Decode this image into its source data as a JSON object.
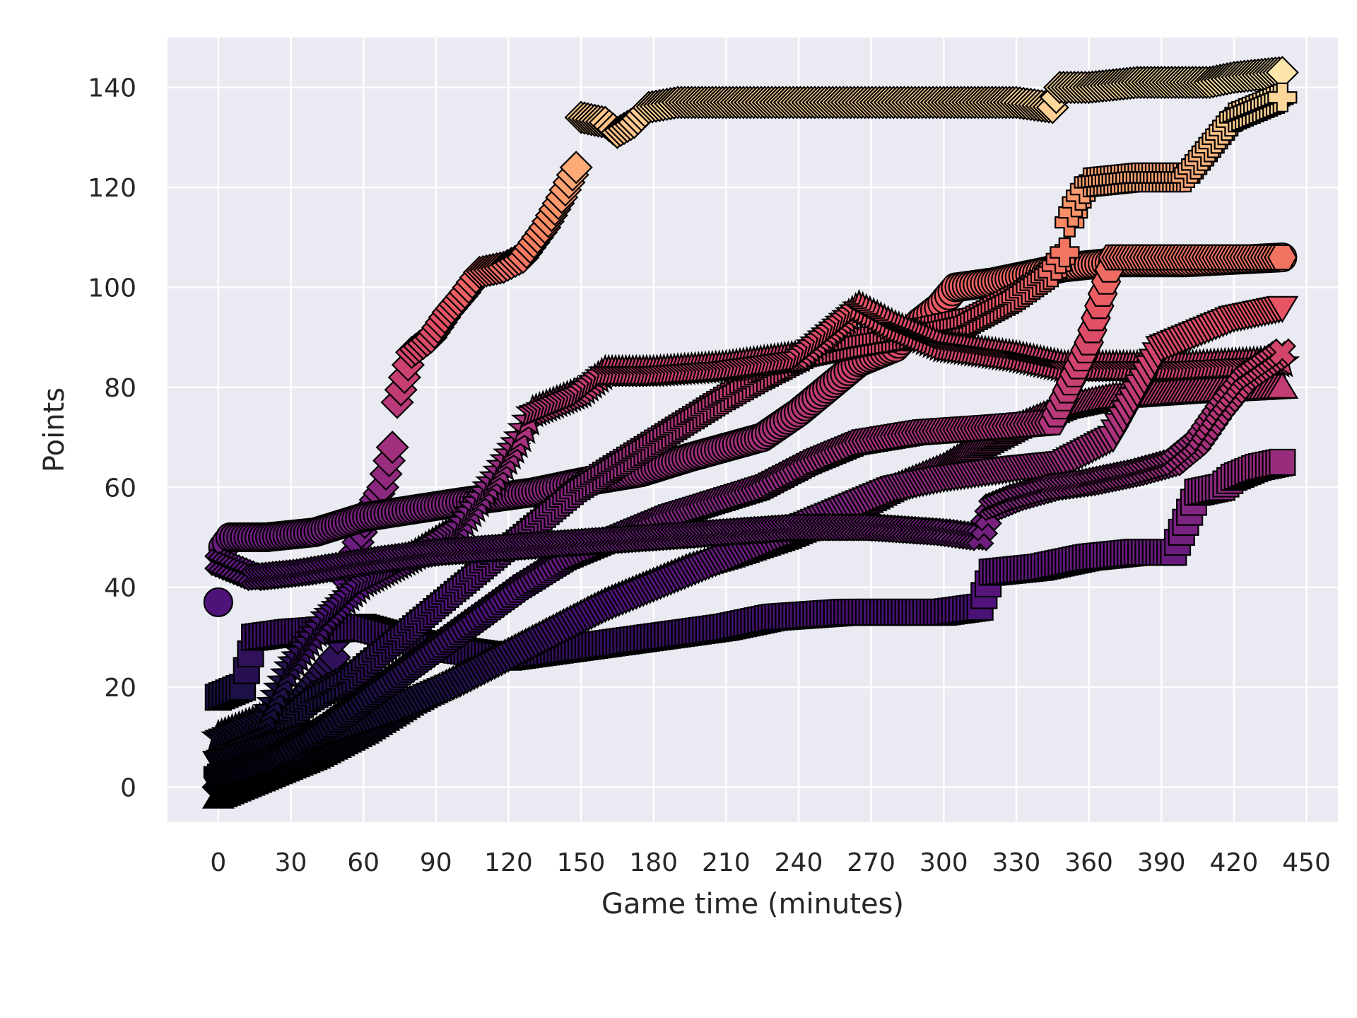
{
  "chart_data": {
    "type": "scatter",
    "title": "",
    "xlabel": "Game time (minutes)",
    "ylabel": "Points",
    "xlim": [
      -21,
      463
    ],
    "ylim": [
      -7,
      150
    ],
    "xticks": [
      0,
      30,
      60,
      90,
      120,
      150,
      180,
      210,
      240,
      270,
      300,
      330,
      360,
      390,
      420,
      450
    ],
    "yticks": [
      0,
      20,
      40,
      60,
      80,
      100,
      120,
      140
    ],
    "grid": true,
    "legend": "none",
    "style": {
      "background": "#eaeaf2",
      "grid_color": "#ffffff",
      "marker_edge": "#000000",
      "colormap": "magma",
      "color_range": [
        0,
        150
      ]
    },
    "series": [
      {
        "marker": "diamond",
        "points": [
          [
            0,
            0
          ],
          [
            10,
            4
          ],
          [
            22,
            10
          ],
          [
            35,
            18
          ],
          [
            48,
            26
          ],
          [
            55,
            45
          ],
          [
            62,
            55
          ],
          [
            68,
            60
          ],
          [
            72,
            68
          ],
          [
            74,
            77
          ],
          [
            80,
            87
          ],
          [
            88,
            90
          ],
          [
            95,
            95
          ],
          [
            102,
            99
          ],
          [
            108,
            103
          ],
          [
            118,
            104
          ],
          [
            126,
            106
          ],
          [
            135,
            112
          ],
          [
            142,
            118
          ],
          [
            148,
            124
          ],
          [
            150,
            134
          ],
          [
            160,
            133
          ],
          [
            165,
            131
          ],
          [
            172,
            133
          ],
          [
            178,
            136
          ],
          [
            190,
            137
          ],
          [
            220,
            137
          ],
          [
            260,
            137
          ],
          [
            300,
            137
          ],
          [
            330,
            137
          ],
          [
            345,
            136
          ],
          [
            348,
            140
          ],
          [
            360,
            140
          ],
          [
            380,
            141
          ],
          [
            400,
            141
          ],
          [
            410,
            141
          ],
          [
            420,
            142
          ],
          [
            440,
            143
          ]
        ]
      },
      {
        "marker": "circle",
        "points": [
          [
            0,
            37
          ],
          [
            2,
            48
          ],
          [
            5,
            50
          ],
          [
            20,
            50
          ],
          [
            40,
            51
          ],
          [
            60,
            54
          ],
          [
            100,
            57
          ],
          [
            130,
            59
          ],
          [
            150,
            61
          ],
          [
            175,
            63
          ],
          [
            195,
            66
          ],
          [
            210,
            68
          ],
          [
            225,
            70
          ],
          [
            240,
            75
          ],
          [
            265,
            85
          ],
          [
            280,
            88
          ],
          [
            290,
            93
          ],
          [
            298,
            96
          ],
          [
            305,
            100
          ],
          [
            320,
            101
          ],
          [
            340,
            103
          ],
          [
            350,
            104
          ],
          [
            370,
            105
          ],
          [
            400,
            105
          ],
          [
            440,
            106
          ]
        ]
      },
      {
        "marker": "square",
        "points": [
          [
            0,
            18
          ],
          [
            10,
            20
          ],
          [
            15,
            30
          ],
          [
            30,
            31
          ],
          [
            60,
            32
          ],
          [
            90,
            28
          ],
          [
            120,
            26
          ],
          [
            150,
            28
          ],
          [
            180,
            30
          ],
          [
            210,
            32
          ],
          [
            230,
            34
          ],
          [
            260,
            35
          ],
          [
            300,
            35
          ],
          [
            315,
            36
          ],
          [
            320,
            43
          ],
          [
            340,
            44
          ],
          [
            360,
            46
          ],
          [
            380,
            47
          ],
          [
            395,
            47
          ],
          [
            400,
            53
          ],
          [
            405,
            59
          ],
          [
            415,
            60
          ],
          [
            420,
            62
          ],
          [
            430,
            64
          ],
          [
            440,
            65
          ]
        ]
      },
      {
        "marker": "plus",
        "points": [
          [
            0,
            3
          ],
          [
            15,
            8
          ],
          [
            25,
            12
          ],
          [
            40,
            18
          ],
          [
            55,
            22
          ],
          [
            70,
            28
          ],
          [
            90,
            36
          ],
          [
            110,
            44
          ],
          [
            130,
            52
          ],
          [
            150,
            60
          ],
          [
            170,
            66
          ],
          [
            190,
            72
          ],
          [
            210,
            78
          ],
          [
            225,
            82
          ],
          [
            245,
            87
          ],
          [
            265,
            89
          ],
          [
            290,
            91
          ],
          [
            310,
            93
          ],
          [
            330,
            98
          ],
          [
            345,
            103
          ],
          [
            350,
            107
          ],
          [
            352,
            113
          ],
          [
            355,
            117
          ],
          [
            360,
            121
          ],
          [
            380,
            122
          ],
          [
            400,
            122
          ],
          [
            420,
            134
          ],
          [
            440,
            138
          ]
        ]
      },
      {
        "marker": "star",
        "points": [
          [
            0,
            10
          ],
          [
            20,
            14
          ],
          [
            30,
            24
          ],
          [
            45,
            34
          ],
          [
            60,
            41
          ],
          [
            80,
            46
          ],
          [
            100,
            52
          ],
          [
            115,
            62
          ],
          [
            125,
            70
          ],
          [
            130,
            75
          ],
          [
            140,
            77
          ],
          [
            150,
            79
          ],
          [
            160,
            83
          ],
          [
            180,
            83
          ],
          [
            210,
            84
          ],
          [
            240,
            86
          ],
          [
            255,
            92
          ],
          [
            265,
            96
          ],
          [
            280,
            92
          ],
          [
            300,
            88
          ],
          [
            330,
            86
          ],
          [
            350,
            84
          ],
          [
            370,
            84
          ],
          [
            400,
            84
          ],
          [
            440,
            85
          ]
        ]
      },
      {
        "marker": "triangle-up",
        "points": [
          [
            0,
            -2
          ],
          [
            20,
            2
          ],
          [
            40,
            6
          ],
          [
            60,
            11
          ],
          [
            80,
            17
          ],
          [
            100,
            22
          ],
          [
            120,
            27
          ],
          [
            140,
            32
          ],
          [
            160,
            37
          ],
          [
            180,
            41
          ],
          [
            195,
            44
          ],
          [
            210,
            46
          ],
          [
            235,
            50
          ],
          [
            260,
            55
          ],
          [
            280,
            60
          ],
          [
            300,
            64
          ],
          [
            310,
            67
          ],
          [
            330,
            72
          ],
          [
            350,
            76
          ],
          [
            370,
            78
          ],
          [
            400,
            79
          ],
          [
            440,
            80
          ]
        ]
      },
      {
        "marker": "triangle-down",
        "points": [
          [
            0,
            5
          ],
          [
            15,
            7
          ],
          [
            30,
            9
          ],
          [
            50,
            12
          ],
          [
            75,
            16
          ],
          [
            100,
            21
          ],
          [
            120,
            26
          ],
          [
            140,
            31
          ],
          [
            160,
            36
          ],
          [
            180,
            40
          ],
          [
            200,
            44
          ],
          [
            220,
            48
          ],
          [
            240,
            52
          ],
          [
            260,
            56
          ],
          [
            280,
            60
          ],
          [
            300,
            62
          ],
          [
            330,
            64
          ],
          [
            350,
            65
          ],
          [
            370,
            70
          ],
          [
            390,
            88
          ],
          [
            405,
            91
          ],
          [
            420,
            94
          ],
          [
            440,
            96
          ]
        ]
      },
      {
        "marker": "hexagon",
        "points": [
          [
            0,
            2
          ],
          [
            25,
            6
          ],
          [
            45,
            12
          ],
          [
            65,
            19
          ],
          [
            85,
            26
          ],
          [
            105,
            33
          ],
          [
            125,
            40
          ],
          [
            145,
            46
          ],
          [
            165,
            50
          ],
          [
            185,
            54
          ],
          [
            205,
            57
          ],
          [
            225,
            60
          ],
          [
            245,
            65
          ],
          [
            265,
            69
          ],
          [
            290,
            71
          ],
          [
            320,
            72
          ],
          [
            345,
            73
          ],
          [
            360,
            89
          ],
          [
            370,
            106
          ],
          [
            390,
            106
          ],
          [
            420,
            106
          ],
          [
            440,
            106
          ]
        ]
      },
      {
        "marker": "x",
        "points": [
          [
            0,
            45
          ],
          [
            15,
            42
          ],
          [
            35,
            43
          ],
          [
            60,
            45
          ],
          [
            90,
            47
          ],
          [
            120,
            48
          ],
          [
            150,
            49
          ],
          [
            180,
            50
          ],
          [
            210,
            51
          ],
          [
            240,
            52
          ],
          [
            270,
            52
          ],
          [
            300,
            51
          ],
          [
            315,
            50
          ],
          [
            320,
            56
          ],
          [
            330,
            58
          ],
          [
            345,
            60
          ],
          [
            360,
            61
          ],
          [
            380,
            63
          ],
          [
            395,
            65
          ],
          [
            405,
            69
          ],
          [
            415,
            76
          ],
          [
            425,
            82
          ],
          [
            440,
            87
          ]
        ]
      }
    ]
  }
}
